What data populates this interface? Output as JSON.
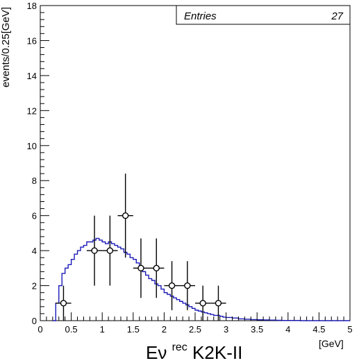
{
  "chart_data": {
    "type": "scatter",
    "title": "",
    "xlabel_main": "Eν",
    "xlabel_sup": "rec",
    "xlabel_suffix": " K2K-II",
    "xunit": "[GeV]",
    "ylabel": "events/0.25[GeV]",
    "xlim": [
      0,
      5
    ],
    "ylim": [
      0,
      18
    ],
    "x_ticks": [
      0,
      0.5,
      1,
      1.5,
      2,
      2.5,
      3,
      3.5,
      4,
      4.5,
      5
    ],
    "x_tick_labels": [
      "0",
      "0.5",
      "1",
      "1.5",
      "2",
      "2.5",
      "3",
      "3.5",
      "4",
      "4.5",
      "5"
    ],
    "y_ticks": [
      0,
      2,
      4,
      6,
      8,
      10,
      12,
      14,
      16,
      18
    ],
    "y_tick_labels": [
      "0",
      "2",
      "4",
      "6",
      "8",
      "10",
      "12",
      "14",
      "16",
      "18"
    ],
    "stats_box": {
      "label": "Entries",
      "value": "27"
    },
    "colors": {
      "data": "#000000",
      "mc": "#1a1ab8",
      "frame": "#000000"
    },
    "series": [
      {
        "kind": "data-points-with-errors",
        "x": [
          0.375,
          0.875,
          1.125,
          1.375,
          1.625,
          1.875,
          2.125,
          2.375,
          2.625,
          2.875
        ],
        "y": [
          1,
          4,
          4,
          6,
          3,
          3,
          2,
          2,
          1,
          1
        ],
        "x_err": 0.125,
        "y_err_low": [
          1,
          2,
          2,
          2.4,
          1.7,
          1.7,
          1.4,
          1.4,
          1,
          1
        ],
        "y_err_high": [
          1,
          2,
          2,
          2.4,
          1.7,
          1.7,
          1.4,
          1.4,
          1,
          1
        ]
      },
      {
        "kind": "mc-step-histogram",
        "x": [
          0.2,
          0.25,
          0.3,
          0.35,
          0.4,
          0.45,
          0.5,
          0.55,
          0.6,
          0.65,
          0.7,
          0.75,
          0.8,
          0.85,
          0.9,
          0.95,
          1.0,
          1.05,
          1.1,
          1.15,
          1.2,
          1.25,
          1.3,
          1.35,
          1.4,
          1.45,
          1.5,
          1.55,
          1.6,
          1.65,
          1.7,
          1.75,
          1.8,
          1.85,
          1.9,
          1.95,
          2.0,
          2.05,
          2.1,
          2.15,
          2.2,
          2.25,
          2.3,
          2.35,
          2.4,
          2.45,
          2.5,
          2.55,
          2.6,
          2.65,
          2.7,
          2.75,
          2.8,
          2.85,
          2.9,
          2.95,
          3.0,
          3.1,
          3.2,
          3.3,
          3.4,
          3.5,
          3.6,
          3.7,
          3.8,
          3.9,
          4.0,
          4.2,
          4.4,
          4.6,
          4.8
        ],
        "y": [
          0,
          1.0,
          2.0,
          2.7,
          3.0,
          3.2,
          3.5,
          3.8,
          4.0,
          4.2,
          4.3,
          4.5,
          4.5,
          4.6,
          4.7,
          4.6,
          4.5,
          4.4,
          4.5,
          4.4,
          4.3,
          4.2,
          4.1,
          3.9,
          3.8,
          3.6,
          3.5,
          3.3,
          3.0,
          2.8,
          2.6,
          2.4,
          2.3,
          2.1,
          2.0,
          1.8,
          1.6,
          1.5,
          1.4,
          1.3,
          1.2,
          1.1,
          1.0,
          0.9,
          0.8,
          0.7,
          0.6,
          0.55,
          0.5,
          0.45,
          0.4,
          0.35,
          0.3,
          0.3,
          0.25,
          0.2,
          0.18,
          0.15,
          0.1,
          0.08,
          0.06,
          0.05,
          0.04,
          0.03,
          0.02,
          0.01,
          0.01,
          0.0,
          0.0,
          0.0,
          0.0
        ]
      }
    ]
  }
}
